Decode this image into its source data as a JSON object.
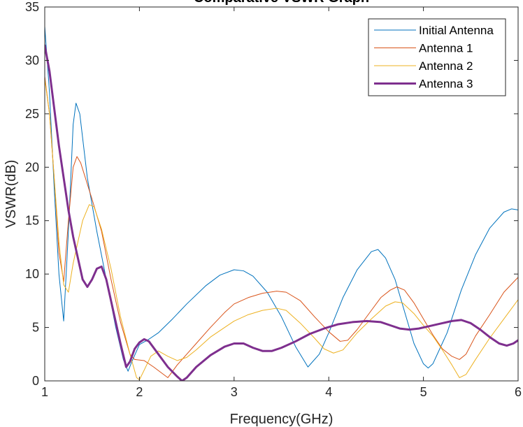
{
  "chart_data": {
    "type": "line",
    "title": "Comparative VSWR Graph",
    "xlabel": "Frequency(GHz)",
    "ylabel": "VSWR(dB)",
    "xlim": [
      1,
      6
    ],
    "ylim": [
      0,
      35
    ],
    "xticks": [
      "1",
      "2",
      "3",
      "4",
      "5",
      "6"
    ],
    "yticks": [
      "0",
      "5",
      "10",
      "15",
      "20",
      "25",
      "30",
      "35"
    ],
    "grid": false,
    "legend_position": "top-right",
    "series": [
      {
        "name": "Initial Antenna",
        "color": "#0072BD",
        "width": 1,
        "points": [
          [
            1.0,
            33.2
          ],
          [
            1.05,
            27.0
          ],
          [
            1.1,
            18.0
          ],
          [
            1.15,
            10.0
          ],
          [
            1.2,
            5.6
          ],
          [
            1.25,
            14.0
          ],
          [
            1.3,
            24.0
          ],
          [
            1.33,
            26.0
          ],
          [
            1.37,
            25.0
          ],
          [
            1.45,
            19.0
          ],
          [
            1.55,
            14.0
          ],
          [
            1.65,
            9.5
          ],
          [
            1.75,
            5.0
          ],
          [
            1.83,
            2.0
          ],
          [
            1.88,
            0.9
          ],
          [
            1.92,
            1.8
          ],
          [
            2.0,
            3.4
          ],
          [
            2.1,
            3.9
          ],
          [
            2.2,
            4.5
          ],
          [
            2.35,
            5.8
          ],
          [
            2.5,
            7.2
          ],
          [
            2.7,
            8.9
          ],
          [
            2.85,
            9.9
          ],
          [
            3.0,
            10.4
          ],
          [
            3.1,
            10.3
          ],
          [
            3.2,
            9.8
          ],
          [
            3.35,
            8.3
          ],
          [
            3.5,
            6.0
          ],
          [
            3.65,
            3.2
          ],
          [
            3.78,
            1.3
          ],
          [
            3.9,
            2.5
          ],
          [
            4.0,
            4.5
          ],
          [
            4.15,
            7.8
          ],
          [
            4.3,
            10.4
          ],
          [
            4.45,
            12.1
          ],
          [
            4.52,
            12.3
          ],
          [
            4.6,
            11.5
          ],
          [
            4.7,
            9.5
          ],
          [
            4.8,
            6.5
          ],
          [
            4.9,
            3.5
          ],
          [
            5.0,
            1.6
          ],
          [
            5.05,
            1.2
          ],
          [
            5.1,
            1.6
          ],
          [
            5.25,
            4.5
          ],
          [
            5.4,
            8.5
          ],
          [
            5.55,
            11.8
          ],
          [
            5.7,
            14.3
          ],
          [
            5.85,
            15.8
          ],
          [
            5.93,
            16.1
          ],
          [
            6.0,
            16.0
          ]
        ]
      },
      {
        "name": "Antenna 1",
        "color": "#D95319",
        "width": 1,
        "points": [
          [
            1.0,
            28.5
          ],
          [
            1.05,
            25.0
          ],
          [
            1.1,
            19.0
          ],
          [
            1.15,
            12.0
          ],
          [
            1.2,
            9.3
          ],
          [
            1.25,
            15.0
          ],
          [
            1.3,
            20.0
          ],
          [
            1.34,
            21.0
          ],
          [
            1.38,
            20.4
          ],
          [
            1.5,
            17.0
          ],
          [
            1.6,
            14.0
          ],
          [
            1.7,
            9.5
          ],
          [
            1.8,
            5.5
          ],
          [
            1.9,
            2.5
          ],
          [
            1.95,
            2.0
          ],
          [
            2.05,
            1.9
          ],
          [
            2.15,
            1.3
          ],
          [
            2.3,
            0.3
          ],
          [
            2.4,
            1.5
          ],
          [
            2.5,
            2.5
          ],
          [
            2.6,
            3.5
          ],
          [
            2.75,
            5.0
          ],
          [
            2.9,
            6.4
          ],
          [
            3.0,
            7.2
          ],
          [
            3.15,
            7.8
          ],
          [
            3.3,
            8.2
          ],
          [
            3.45,
            8.4
          ],
          [
            3.55,
            8.3
          ],
          [
            3.7,
            7.5
          ],
          [
            3.85,
            6.0
          ],
          [
            4.0,
            4.6
          ],
          [
            4.12,
            3.7
          ],
          [
            4.2,
            3.8
          ],
          [
            4.3,
            4.8
          ],
          [
            4.45,
            6.6
          ],
          [
            4.55,
            7.8
          ],
          [
            4.65,
            8.5
          ],
          [
            4.72,
            8.8
          ],
          [
            4.8,
            8.5
          ],
          [
            4.9,
            7.3
          ],
          [
            5.0,
            5.8
          ],
          [
            5.1,
            4.3
          ],
          [
            5.2,
            3.0
          ],
          [
            5.3,
            2.3
          ],
          [
            5.38,
            2.0
          ],
          [
            5.45,
            2.5
          ],
          [
            5.55,
            4.2
          ],
          [
            5.7,
            6.2
          ],
          [
            5.85,
            8.3
          ],
          [
            6.0,
            9.7
          ]
        ]
      },
      {
        "name": "Antenna 2",
        "color": "#EDB120",
        "width": 1,
        "points": [
          [
            1.0,
            28.3
          ],
          [
            1.05,
            25.0
          ],
          [
            1.1,
            19.0
          ],
          [
            1.15,
            13.0
          ],
          [
            1.2,
            9.0
          ],
          [
            1.25,
            8.3
          ],
          [
            1.3,
            11.0
          ],
          [
            1.4,
            15.0
          ],
          [
            1.47,
            16.5
          ],
          [
            1.52,
            16.3
          ],
          [
            1.6,
            14.2
          ],
          [
            1.7,
            10.5
          ],
          [
            1.8,
            6.0
          ],
          [
            1.9,
            2.5
          ],
          [
            1.97,
            0.3
          ],
          [
            2.0,
            0.1
          ],
          [
            2.05,
            1.0
          ],
          [
            2.12,
            2.3
          ],
          [
            2.2,
            2.8
          ],
          [
            2.3,
            2.3
          ],
          [
            2.4,
            1.9
          ],
          [
            2.5,
            2.2
          ],
          [
            2.6,
            2.9
          ],
          [
            2.75,
            4.1
          ],
          [
            2.9,
            5.0
          ],
          [
            3.0,
            5.6
          ],
          [
            3.15,
            6.2
          ],
          [
            3.3,
            6.6
          ],
          [
            3.45,
            6.8
          ],
          [
            3.55,
            6.6
          ],
          [
            3.7,
            5.4
          ],
          [
            3.85,
            4.0
          ],
          [
            3.95,
            3.0
          ],
          [
            4.05,
            2.6
          ],
          [
            4.15,
            2.9
          ],
          [
            4.3,
            4.5
          ],
          [
            4.45,
            5.8
          ],
          [
            4.6,
            7.0
          ],
          [
            4.7,
            7.4
          ],
          [
            4.78,
            7.3
          ],
          [
            4.9,
            6.3
          ],
          [
            5.0,
            5.2
          ],
          [
            5.1,
            4.2
          ],
          [
            5.2,
            2.9
          ],
          [
            5.3,
            1.5
          ],
          [
            5.38,
            0.3
          ],
          [
            5.45,
            0.6
          ],
          [
            5.55,
            2.0
          ],
          [
            5.7,
            4.0
          ],
          [
            5.85,
            5.8
          ],
          [
            6.0,
            7.6
          ]
        ]
      },
      {
        "name": "Antenna 3",
        "color": "#7E2F8E",
        "width": 3,
        "points": [
          [
            1.0,
            31.4
          ],
          [
            1.05,
            29.0
          ],
          [
            1.1,
            25.5
          ],
          [
            1.15,
            22.0
          ],
          [
            1.2,
            19.0
          ],
          [
            1.25,
            16.0
          ],
          [
            1.3,
            13.5
          ],
          [
            1.35,
            11.5
          ],
          [
            1.4,
            9.5
          ],
          [
            1.45,
            8.8
          ],
          [
            1.5,
            9.5
          ],
          [
            1.55,
            10.5
          ],
          [
            1.6,
            10.7
          ],
          [
            1.65,
            9.5
          ],
          [
            1.7,
            7.5
          ],
          [
            1.75,
            5.5
          ],
          [
            1.8,
            3.5
          ],
          [
            1.86,
            1.3
          ],
          [
            1.9,
            1.8
          ],
          [
            1.95,
            3.0
          ],
          [
            2.0,
            3.6
          ],
          [
            2.05,
            3.9
          ],
          [
            2.1,
            3.7
          ],
          [
            2.2,
            2.5
          ],
          [
            2.3,
            1.3
          ],
          [
            2.4,
            0.4
          ],
          [
            2.45,
            0.0
          ],
          [
            2.5,
            0.3
          ],
          [
            2.6,
            1.3
          ],
          [
            2.75,
            2.4
          ],
          [
            2.9,
            3.2
          ],
          [
            3.0,
            3.5
          ],
          [
            3.1,
            3.5
          ],
          [
            3.2,
            3.1
          ],
          [
            3.3,
            2.8
          ],
          [
            3.4,
            2.8
          ],
          [
            3.5,
            3.1
          ],
          [
            3.65,
            3.7
          ],
          [
            3.8,
            4.4
          ],
          [
            3.95,
            4.9
          ],
          [
            4.1,
            5.3
          ],
          [
            4.25,
            5.5
          ],
          [
            4.4,
            5.6
          ],
          [
            4.55,
            5.5
          ],
          [
            4.65,
            5.2
          ],
          [
            4.75,
            4.9
          ],
          [
            4.85,
            4.8
          ],
          [
            4.95,
            4.9
          ],
          [
            5.05,
            5.1
          ],
          [
            5.2,
            5.4
          ],
          [
            5.3,
            5.6
          ],
          [
            5.4,
            5.7
          ],
          [
            5.5,
            5.4
          ],
          [
            5.6,
            4.8
          ],
          [
            5.7,
            4.1
          ],
          [
            5.8,
            3.5
          ],
          [
            5.88,
            3.3
          ],
          [
            5.95,
            3.5
          ],
          [
            6.0,
            3.8
          ]
        ]
      }
    ]
  }
}
